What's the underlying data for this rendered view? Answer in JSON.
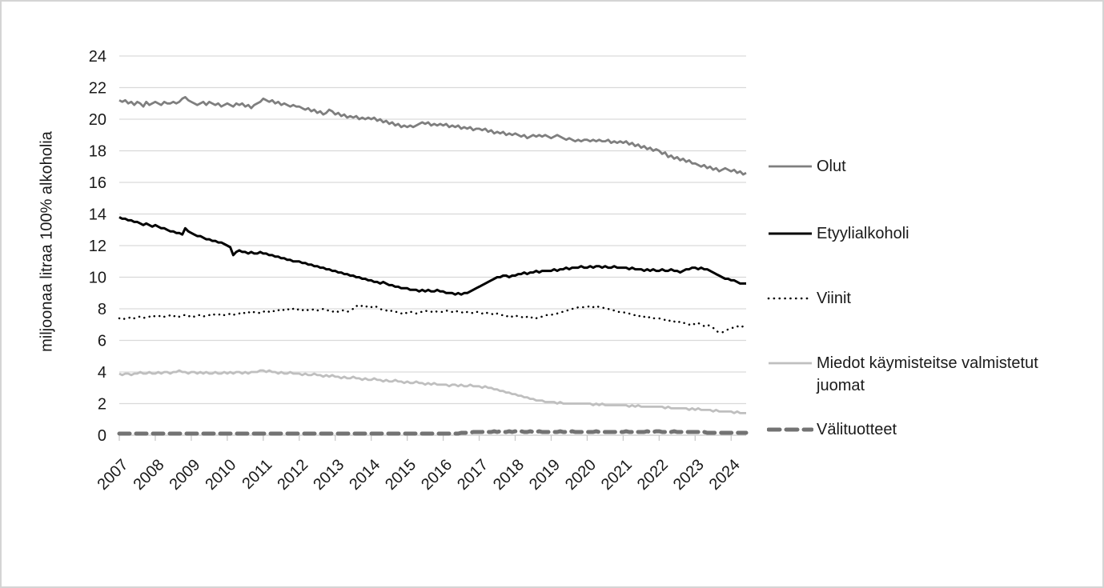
{
  "window": {
    "background": "#ffffff",
    "border_color": "#d4d4d4"
  },
  "chart_data": {
    "type": "line",
    "title": "",
    "xlabel": "",
    "ylabel": "miljoonaa litraa 100% alkoholia",
    "ylim": [
      0,
      24
    ],
    "y_ticks": [
      0,
      2,
      4,
      6,
      8,
      10,
      12,
      14,
      16,
      18,
      20,
      22,
      24
    ],
    "x_ticks": [
      "2007",
      "2008",
      "2009",
      "2010",
      "2011",
      "2012",
      "2013",
      "2014",
      "2015",
      "2016",
      "2017",
      "2018",
      "2019",
      "2020",
      "2021",
      "2022",
      "2023",
      "2024"
    ],
    "points_per_year": 12,
    "grid": "horizontal",
    "legend_position": "right",
    "colors": {
      "grid": "#d9d9d9",
      "axis": "#c9c9c9"
    },
    "series": [
      {
        "name": "Olut",
        "color": "#7f7f7f",
        "style": "solid",
        "width": 2.8,
        "values": [
          21.2,
          21.1,
          21.2,
          21.0,
          21.1,
          20.9,
          21.1,
          21.0,
          20.8,
          21.1,
          20.9,
          21.0,
          21.1,
          21.0,
          20.9,
          21.1,
          21.0,
          21.0,
          21.1,
          21.0,
          21.1,
          21.3,
          21.4,
          21.2,
          21.1,
          21.0,
          20.9,
          21.0,
          21.1,
          20.9,
          21.1,
          21.0,
          20.9,
          21.0,
          20.8,
          20.9,
          21.0,
          20.9,
          20.8,
          21.0,
          20.9,
          21.0,
          20.8,
          20.9,
          20.7,
          20.9,
          21.0,
          21.1,
          21.3,
          21.2,
          21.1,
          21.2,
          21.0,
          21.1,
          20.9,
          21.0,
          20.9,
          20.8,
          20.9,
          20.8,
          20.8,
          20.7,
          20.6,
          20.7,
          20.5,
          20.6,
          20.4,
          20.5,
          20.3,
          20.4,
          20.6,
          20.5,
          20.3,
          20.4,
          20.2,
          20.3,
          20.1,
          20.2,
          20.1,
          20.2,
          20.0,
          20.1,
          20.0,
          20.1,
          20.0,
          20.1,
          19.9,
          20.0,
          19.8,
          19.9,
          19.7,
          19.8,
          19.6,
          19.7,
          19.5,
          19.6,
          19.5,
          19.6,
          19.5,
          19.6,
          19.7,
          19.8,
          19.7,
          19.8,
          19.6,
          19.7,
          19.6,
          19.7,
          19.6,
          19.7,
          19.5,
          19.6,
          19.5,
          19.6,
          19.4,
          19.5,
          19.4,
          19.5,
          19.3,
          19.4,
          19.4,
          19.3,
          19.4,
          19.2,
          19.3,
          19.1,
          19.2,
          19.1,
          19.2,
          19.0,
          19.1,
          19.0,
          19.1,
          19.0,
          18.9,
          19.0,
          18.8,
          18.9,
          19.0,
          18.9,
          19.0,
          18.9,
          19.0,
          18.9,
          18.8,
          18.9,
          19.0,
          18.9,
          18.8,
          18.7,
          18.8,
          18.7,
          18.6,
          18.7,
          18.6,
          18.7,
          18.7,
          18.6,
          18.7,
          18.6,
          18.7,
          18.6,
          18.6,
          18.7,
          18.5,
          18.6,
          18.5,
          18.6,
          18.5,
          18.6,
          18.4,
          18.5,
          18.3,
          18.4,
          18.2,
          18.3,
          18.1,
          18.2,
          18.0,
          18.1,
          18.0,
          17.8,
          17.9,
          17.6,
          17.7,
          17.5,
          17.6,
          17.4,
          17.5,
          17.3,
          17.4,
          17.2,
          17.2,
          17.1,
          17.0,
          17.1,
          16.9,
          17.0,
          16.8,
          16.9,
          16.7,
          16.8,
          16.9,
          16.8,
          16.7,
          16.8,
          16.6,
          16.7,
          16.5,
          16.6
        ]
      },
      {
        "name": "Etyylialkoholi",
        "color": "#000000",
        "style": "solid",
        "width": 3,
        "values": [
          13.8,
          13.7,
          13.7,
          13.6,
          13.6,
          13.5,
          13.5,
          13.4,
          13.3,
          13.4,
          13.3,
          13.2,
          13.3,
          13.2,
          13.1,
          13.1,
          13.0,
          12.9,
          12.9,
          12.8,
          12.8,
          12.7,
          13.1,
          12.9,
          12.8,
          12.7,
          12.6,
          12.6,
          12.5,
          12.4,
          12.4,
          12.3,
          12.3,
          12.2,
          12.2,
          12.1,
          12.0,
          11.9,
          11.4,
          11.6,
          11.7,
          11.6,
          11.6,
          11.5,
          11.6,
          11.5,
          11.5,
          11.6,
          11.5,
          11.5,
          11.4,
          11.4,
          11.3,
          11.3,
          11.2,
          11.2,
          11.1,
          11.1,
          11.0,
          11.0,
          11.0,
          10.9,
          10.9,
          10.8,
          10.8,
          10.7,
          10.7,
          10.6,
          10.6,
          10.5,
          10.5,
          10.4,
          10.4,
          10.3,
          10.3,
          10.2,
          10.2,
          10.1,
          10.1,
          10.0,
          10.0,
          9.9,
          9.9,
          9.8,
          9.8,
          9.7,
          9.7,
          9.6,
          9.7,
          9.6,
          9.5,
          9.5,
          9.4,
          9.4,
          9.3,
          9.3,
          9.3,
          9.2,
          9.2,
          9.2,
          9.1,
          9.2,
          9.1,
          9.2,
          9.1,
          9.1,
          9.2,
          9.1,
          9.1,
          9.0,
          9.0,
          9.0,
          8.9,
          9.0,
          8.9,
          9.0,
          9.0,
          9.1,
          9.2,
          9.3,
          9.4,
          9.5,
          9.6,
          9.7,
          9.8,
          9.9,
          10.0,
          10.0,
          10.1,
          10.1,
          10.0,
          10.1,
          10.1,
          10.2,
          10.2,
          10.3,
          10.2,
          10.3,
          10.3,
          10.4,
          10.3,
          10.4,
          10.4,
          10.4,
          10.4,
          10.5,
          10.4,
          10.5,
          10.5,
          10.6,
          10.5,
          10.6,
          10.6,
          10.6,
          10.7,
          10.6,
          10.6,
          10.7,
          10.6,
          10.7,
          10.7,
          10.6,
          10.7,
          10.6,
          10.6,
          10.7,
          10.6,
          10.6,
          10.6,
          10.6,
          10.5,
          10.6,
          10.5,
          10.5,
          10.5,
          10.4,
          10.5,
          10.4,
          10.5,
          10.4,
          10.4,
          10.5,
          10.4,
          10.4,
          10.5,
          10.4,
          10.4,
          10.3,
          10.4,
          10.5,
          10.5,
          10.6,
          10.6,
          10.5,
          10.6,
          10.5,
          10.5,
          10.4,
          10.3,
          10.2,
          10.1,
          10.0,
          9.9,
          9.9,
          9.8,
          9.8,
          9.7,
          9.6,
          9.6,
          9.6
        ]
      },
      {
        "name": "Viinit",
        "color": "#000000",
        "style": "dotted",
        "width": 2.5,
        "values": [
          7.4,
          7.3,
          7.4,
          7.4,
          7.5,
          7.4,
          7.5,
          7.5,
          7.4,
          7.5,
          7.5,
          7.6,
          7.5,
          7.5,
          7.6,
          7.5,
          7.5,
          7.6,
          7.5,
          7.6,
          7.5,
          7.6,
          7.6,
          7.5,
          7.6,
          7.5,
          7.6,
          7.6,
          7.5,
          7.6,
          7.6,
          7.7,
          7.6,
          7.6,
          7.7,
          7.6,
          7.6,
          7.7,
          7.6,
          7.7,
          7.7,
          7.8,
          7.7,
          7.8,
          7.7,
          7.8,
          7.8,
          7.7,
          7.8,
          7.9,
          7.8,
          7.9,
          7.8,
          7.9,
          8.0,
          7.9,
          8.0,
          7.9,
          8.0,
          7.9,
          8.0,
          7.9,
          8.0,
          7.9,
          7.9,
          8.0,
          7.9,
          7.9,
          8.0,
          7.9,
          7.9,
          7.8,
          7.9,
          7.8,
          7.9,
          7.9,
          7.8,
          7.9,
          8.0,
          8.2,
          8.1,
          8.2,
          8.1,
          8.2,
          8.1,
          8.2,
          8.1,
          8.0,
          7.9,
          7.9,
          7.8,
          7.9,
          7.8,
          7.8,
          7.7,
          7.8,
          7.7,
          7.8,
          7.8,
          7.7,
          7.8,
          7.8,
          7.9,
          7.8,
          7.8,
          7.9,
          7.8,
          7.8,
          7.8,
          7.9,
          7.8,
          7.8,
          7.9,
          7.8,
          7.8,
          7.7,
          7.8,
          7.8,
          7.7,
          7.8,
          7.8,
          7.7,
          7.8,
          7.7,
          7.7,
          7.6,
          7.7,
          7.6,
          7.6,
          7.5,
          7.6,
          7.5,
          7.6,
          7.5,
          7.5,
          7.4,
          7.5,
          7.4,
          7.5,
          7.4,
          7.5,
          7.5,
          7.6,
          7.6,
          7.6,
          7.7,
          7.7,
          7.8,
          7.8,
          7.9,
          7.9,
          8.0,
          8.0,
          8.1,
          8.1,
          8.1,
          8.1,
          8.2,
          8.1,
          8.2,
          8.1,
          8.1,
          8.0,
          8.0,
          7.9,
          7.9,
          7.8,
          7.8,
          7.8,
          7.7,
          7.7,
          7.6,
          7.6,
          7.5,
          7.6,
          7.5,
          7.4,
          7.5,
          7.4,
          7.4,
          7.4,
          7.3,
          7.3,
          7.2,
          7.3,
          7.2,
          7.1,
          7.2,
          7.1,
          7.1,
          7.0,
          7.1,
          7.0,
          7.1,
          7.0,
          6.9,
          7.0,
          6.9,
          6.8,
          6.6,
          6.5,
          6.5,
          6.6,
          6.7,
          6.8,
          6.8,
          6.9,
          6.8,
          6.9,
          6.8
        ]
      },
      {
        "name": "Miedot käymisteitse valmistetut juomat",
        "color": "#bfbfbf",
        "style": "solid",
        "width": 2.8,
        "values": [
          3.9,
          3.8,
          3.9,
          3.9,
          3.8,
          3.9,
          3.9,
          4.0,
          3.9,
          3.9,
          4.0,
          3.9,
          3.9,
          4.0,
          3.9,
          4.0,
          4.0,
          3.9,
          4.0,
          4.0,
          4.1,
          4.0,
          4.0,
          3.9,
          4.0,
          4.0,
          3.9,
          4.0,
          3.9,
          4.0,
          3.9,
          3.9,
          4.0,
          3.9,
          3.9,
          4.0,
          3.9,
          4.0,
          3.9,
          4.0,
          4.0,
          3.9,
          4.0,
          3.9,
          4.0,
          4.0,
          4.0,
          4.1,
          4.1,
          4.0,
          4.1,
          4.0,
          4.0,
          3.9,
          4.0,
          3.9,
          3.9,
          4.0,
          3.9,
          3.9,
          3.9,
          3.8,
          3.9,
          3.8,
          3.8,
          3.9,
          3.8,
          3.8,
          3.7,
          3.8,
          3.7,
          3.8,
          3.7,
          3.7,
          3.6,
          3.7,
          3.6,
          3.6,
          3.7,
          3.6,
          3.6,
          3.5,
          3.6,
          3.5,
          3.5,
          3.6,
          3.5,
          3.5,
          3.4,
          3.5,
          3.4,
          3.4,
          3.5,
          3.4,
          3.4,
          3.3,
          3.4,
          3.3,
          3.3,
          3.4,
          3.3,
          3.3,
          3.2,
          3.3,
          3.2,
          3.3,
          3.2,
          3.2,
          3.2,
          3.2,
          3.1,
          3.2,
          3.2,
          3.1,
          3.2,
          3.1,
          3.1,
          3.2,
          3.1,
          3.1,
          3.1,
          3.0,
          3.1,
          3.0,
          3.0,
          2.9,
          2.9,
          2.8,
          2.8,
          2.7,
          2.7,
          2.6,
          2.6,
          2.5,
          2.5,
          2.4,
          2.4,
          2.3,
          2.3,
          2.2,
          2.2,
          2.2,
          2.1,
          2.1,
          2.1,
          2.1,
          2.0,
          2.1,
          2.0,
          2.0,
          2.0,
          2.0,
          2.0,
          2.0,
          2.0,
          2.0,
          2.0,
          2.0,
          1.9,
          2.0,
          1.9,
          2.0,
          1.9,
          1.9,
          1.9,
          1.9,
          1.9,
          1.9,
          1.9,
          1.9,
          1.8,
          1.9,
          1.8,
          1.9,
          1.8,
          1.8,
          1.8,
          1.8,
          1.8,
          1.8,
          1.8,
          1.8,
          1.7,
          1.8,
          1.7,
          1.7,
          1.7,
          1.7,
          1.7,
          1.7,
          1.6,
          1.7,
          1.6,
          1.7,
          1.6,
          1.6,
          1.6,
          1.6,
          1.5,
          1.6,
          1.5,
          1.5,
          1.5,
          1.5,
          1.5,
          1.4,
          1.5,
          1.4,
          1.4,
          1.4
        ]
      },
      {
        "name": "Välituotteet",
        "color": "#737373",
        "style": "dashed",
        "width": 5,
        "values": [
          0.1,
          0.1,
          0.1,
          0.1,
          0.1,
          0.1,
          0.1,
          0.1,
          0.1,
          0.1,
          0.1,
          0.1,
          0.1,
          0.1,
          0.1,
          0.1,
          0.1,
          0.1,
          0.1,
          0.1,
          0.1,
          0.1,
          0.1,
          0.1,
          0.1,
          0.1,
          0.1,
          0.1,
          0.1,
          0.1,
          0.1,
          0.1,
          0.1,
          0.1,
          0.1,
          0.1,
          0.1,
          0.1,
          0.1,
          0.1,
          0.1,
          0.1,
          0.1,
          0.1,
          0.1,
          0.1,
          0.1,
          0.1,
          0.1,
          0.1,
          0.1,
          0.1,
          0.1,
          0.1,
          0.1,
          0.1,
          0.1,
          0.1,
          0.1,
          0.1,
          0.1,
          0.1,
          0.1,
          0.1,
          0.1,
          0.1,
          0.1,
          0.1,
          0.1,
          0.1,
          0.1,
          0.1,
          0.1,
          0.1,
          0.1,
          0.1,
          0.1,
          0.1,
          0.1,
          0.1,
          0.1,
          0.1,
          0.1,
          0.1,
          0.1,
          0.1,
          0.1,
          0.1,
          0.1,
          0.1,
          0.1,
          0.1,
          0.1,
          0.1,
          0.1,
          0.1,
          0.1,
          0.1,
          0.1,
          0.1,
          0.1,
          0.1,
          0.1,
          0.1,
          0.1,
          0.1,
          0.1,
          0.1,
          0.1,
          0.1,
          0.1,
          0.1,
          0.1,
          0.1,
          0.15,
          0.15,
          0.15,
          0.15,
          0.2,
          0.2,
          0.2,
          0.2,
          0.25,
          0.2,
          0.2,
          0.25,
          0.2,
          0.25,
          0.2,
          0.2,
          0.25,
          0.2,
          0.25,
          0.2,
          0.25,
          0.2,
          0.2,
          0.25,
          0.2,
          0.2,
          0.25,
          0.2,
          0.2,
          0.2,
          0.2,
          0.2,
          0.2,
          0.25,
          0.2,
          0.2,
          0.2,
          0.25,
          0.2,
          0.2,
          0.2,
          0.2,
          0.2,
          0.2,
          0.2,
          0.25,
          0.2,
          0.2,
          0.2,
          0.2,
          0.2,
          0.2,
          0.2,
          0.2,
          0.2,
          0.25,
          0.2,
          0.2,
          0.25,
          0.2,
          0.2,
          0.2,
          0.25,
          0.2,
          0.2,
          0.25,
          0.25,
          0.2,
          0.2,
          0.25,
          0.2,
          0.25,
          0.2,
          0.2,
          0.2,
          0.2,
          0.2,
          0.2,
          0.2,
          0.2,
          0.15,
          0.2,
          0.15,
          0.15,
          0.15,
          0.15,
          0.15,
          0.15,
          0.15,
          0.15,
          0.15,
          0.15,
          0.15,
          0.15,
          0.15,
          0.15
        ]
      }
    ]
  }
}
